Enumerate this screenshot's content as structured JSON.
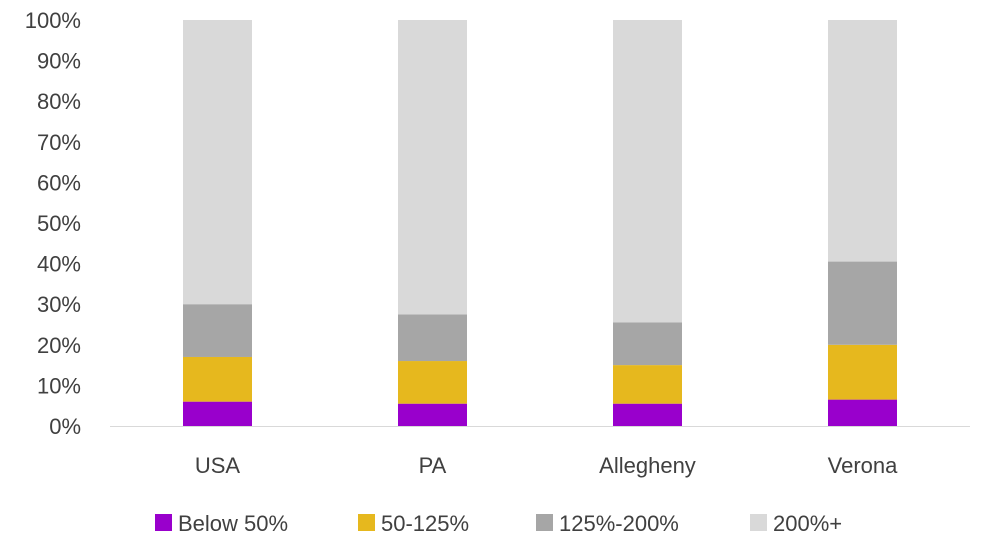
{
  "chart_data": {
    "type": "bar",
    "stacked": true,
    "categories": [
      "USA",
      "PA",
      "Allegheny",
      "Verona"
    ],
    "series": [
      {
        "name": "Below 50%",
        "color": "#9900cc",
        "values": [
          6,
          5.5,
          5.5,
          6.5
        ]
      },
      {
        "name": "50-125%",
        "color": "#e6b81e",
        "values": [
          11,
          10.5,
          9.5,
          13.5
        ]
      },
      {
        "name": "125%-200%",
        "color": "#a6a6a6",
        "values": [
          13,
          11.5,
          10.5,
          20.5
        ]
      },
      {
        "name": "200%+",
        "color": "#d9d9d9",
        "values": [
          70,
          72.5,
          74.5,
          59.5
        ]
      }
    ],
    "ylim": [
      0,
      100
    ],
    "yticks": [
      "0%",
      "10%",
      "20%",
      "30%",
      "40%",
      "50%",
      "60%",
      "70%",
      "80%",
      "90%",
      "100%"
    ],
    "grid": false,
    "legend": "bottom"
  }
}
